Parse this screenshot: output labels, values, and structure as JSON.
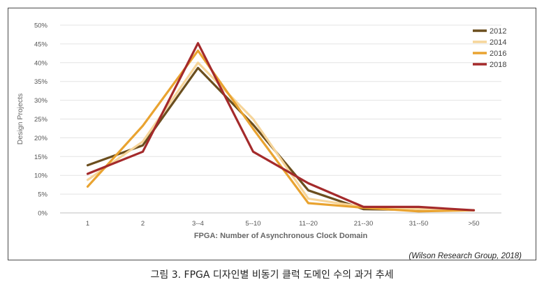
{
  "chart_data": {
    "type": "line",
    "xlabel": "FPGA: Number of Asynchronous Clock Domain",
    "ylabel": "Design Projects",
    "categories": [
      "1",
      "2",
      "3--4",
      "5--10",
      "11--20",
      "21--30",
      "31--50",
      ">50"
    ],
    "yticks": [
      "0%",
      "5%",
      "10%",
      "15%",
      "20%",
      "25%",
      "30%",
      "35%",
      "40%",
      "45%",
      "50%"
    ],
    "ylim": [
      0,
      50
    ],
    "grid": true,
    "legend_position": "top-right",
    "series": [
      {
        "name": "2012",
        "color": "#6b4e1e",
        "values": [
          12.7,
          18.0,
          38.6,
          23.5,
          6.0,
          1.0,
          0.8,
          0.7
        ]
      },
      {
        "name": "2014",
        "color": "#f6d59a",
        "values": [
          8.8,
          19.0,
          40.0,
          25.0,
          3.8,
          1.6,
          1.0,
          0.7
        ]
      },
      {
        "name": "2016",
        "color": "#e9a330",
        "values": [
          7.0,
          23.2,
          43.2,
          22.4,
          2.6,
          1.4,
          0.4,
          0.7
        ]
      },
      {
        "name": "2018",
        "color": "#a42a2b",
        "values": [
          10.4,
          16.3,
          45.2,
          16.3,
          7.9,
          1.6,
          1.6,
          0.7
        ]
      }
    ]
  },
  "source": "(Wilson Research Group, 2018)",
  "caption": "그림 3. FPGA 디자인별 비동기 클럭 도메인 수의 과거 추세"
}
